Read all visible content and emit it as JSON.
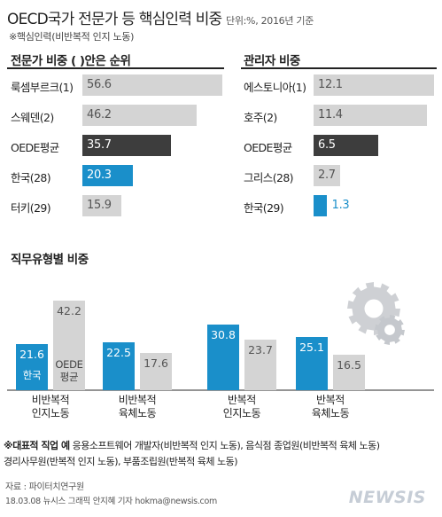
{
  "header": {
    "title": "OECD국가 전문가 등 핵심인력 비중",
    "unit": "단위:%, 2016년 기준",
    "note": "※핵심인력(비반복적 인지 노동)"
  },
  "colors": {
    "blue": "#1a8fca",
    "dark": "#3d3d3d",
    "gray": "#d4d4d4",
    "value_light": "#ffffff",
    "value_dark": "#555555"
  },
  "chart_data": [
    {
      "type": "bar",
      "orientation": "horizontal",
      "title": "전문가 비중 ( )안은 순위",
      "categories": [
        "룩셈부르크(1)",
        "스웨덴(2)",
        "OEDE평균",
        "한국(28)",
        "터키(29)"
      ],
      "values": [
        56.6,
        46.2,
        35.7,
        20.3,
        15.9
      ],
      "value_labels": [
        "56.6",
        "46.2",
        "35.7",
        "20.3",
        "15.9"
      ],
      "bar_colors": [
        "gray",
        "gray",
        "dark",
        "blue",
        "gray"
      ]
    },
    {
      "type": "bar",
      "orientation": "horizontal",
      "title": "관리자 비중",
      "categories": [
        "에스토니아(1)",
        "호주(2)",
        "OEDE평균",
        "그리스(28)",
        "한국(29)"
      ],
      "values": [
        12.1,
        11.4,
        6.5,
        2.7,
        1.3
      ],
      "value_labels": [
        "12.1",
        "11.4",
        "6.5",
        "2.7",
        "1.3"
      ],
      "bar_colors": [
        "gray",
        "gray",
        "dark",
        "gray",
        "blue"
      ]
    },
    {
      "type": "bar",
      "orientation": "vertical",
      "title": "직무유형별 비중",
      "categories": [
        "비반복적 인지노동",
        "비반복적 육체노동",
        "반복적 인지노동",
        "반복적 육체노동"
      ],
      "series": [
        {
          "name": "한국",
          "values": [
            21.6,
            22.5,
            30.8,
            25.1
          ]
        },
        {
          "name": "OEDE 평균",
          "values": [
            42.2,
            17.6,
            23.7,
            16.5
          ]
        }
      ],
      "value_labels": [
        [
          "21.6",
          "22.5",
          "30.8",
          "25.1"
        ],
        [
          "42.2",
          "17.6",
          "23.7",
          "16.5"
        ]
      ],
      "series_colors": [
        "blue",
        "gray"
      ],
      "category_lines": [
        [
          "비반복적",
          "인지노동"
        ],
        [
          "비반복적",
          "육체노동"
        ],
        [
          "반복적",
          "인지노동"
        ],
        [
          "반복적",
          "육체노동"
        ]
      ],
      "inbar_labels": [
        "한국",
        "OEDE",
        "평균"
      ]
    }
  ],
  "footer": {
    "example_label": "※대표적 직업 예",
    "example_line1": "응용소프트웨어 개발자(비반복적 인지 노동), 음식점 종업원(비반복적 육체 노동)",
    "example_line2": "경리사무원(반복적 인지 노동), 부품조립원(반복적 육체 노동)",
    "source": "자료 : 파이터치연구원",
    "credit": "18.03.08 뉴시스 그래픽 안지혜 기자 hokma@newsis.com",
    "logo": "NEWSIS"
  }
}
